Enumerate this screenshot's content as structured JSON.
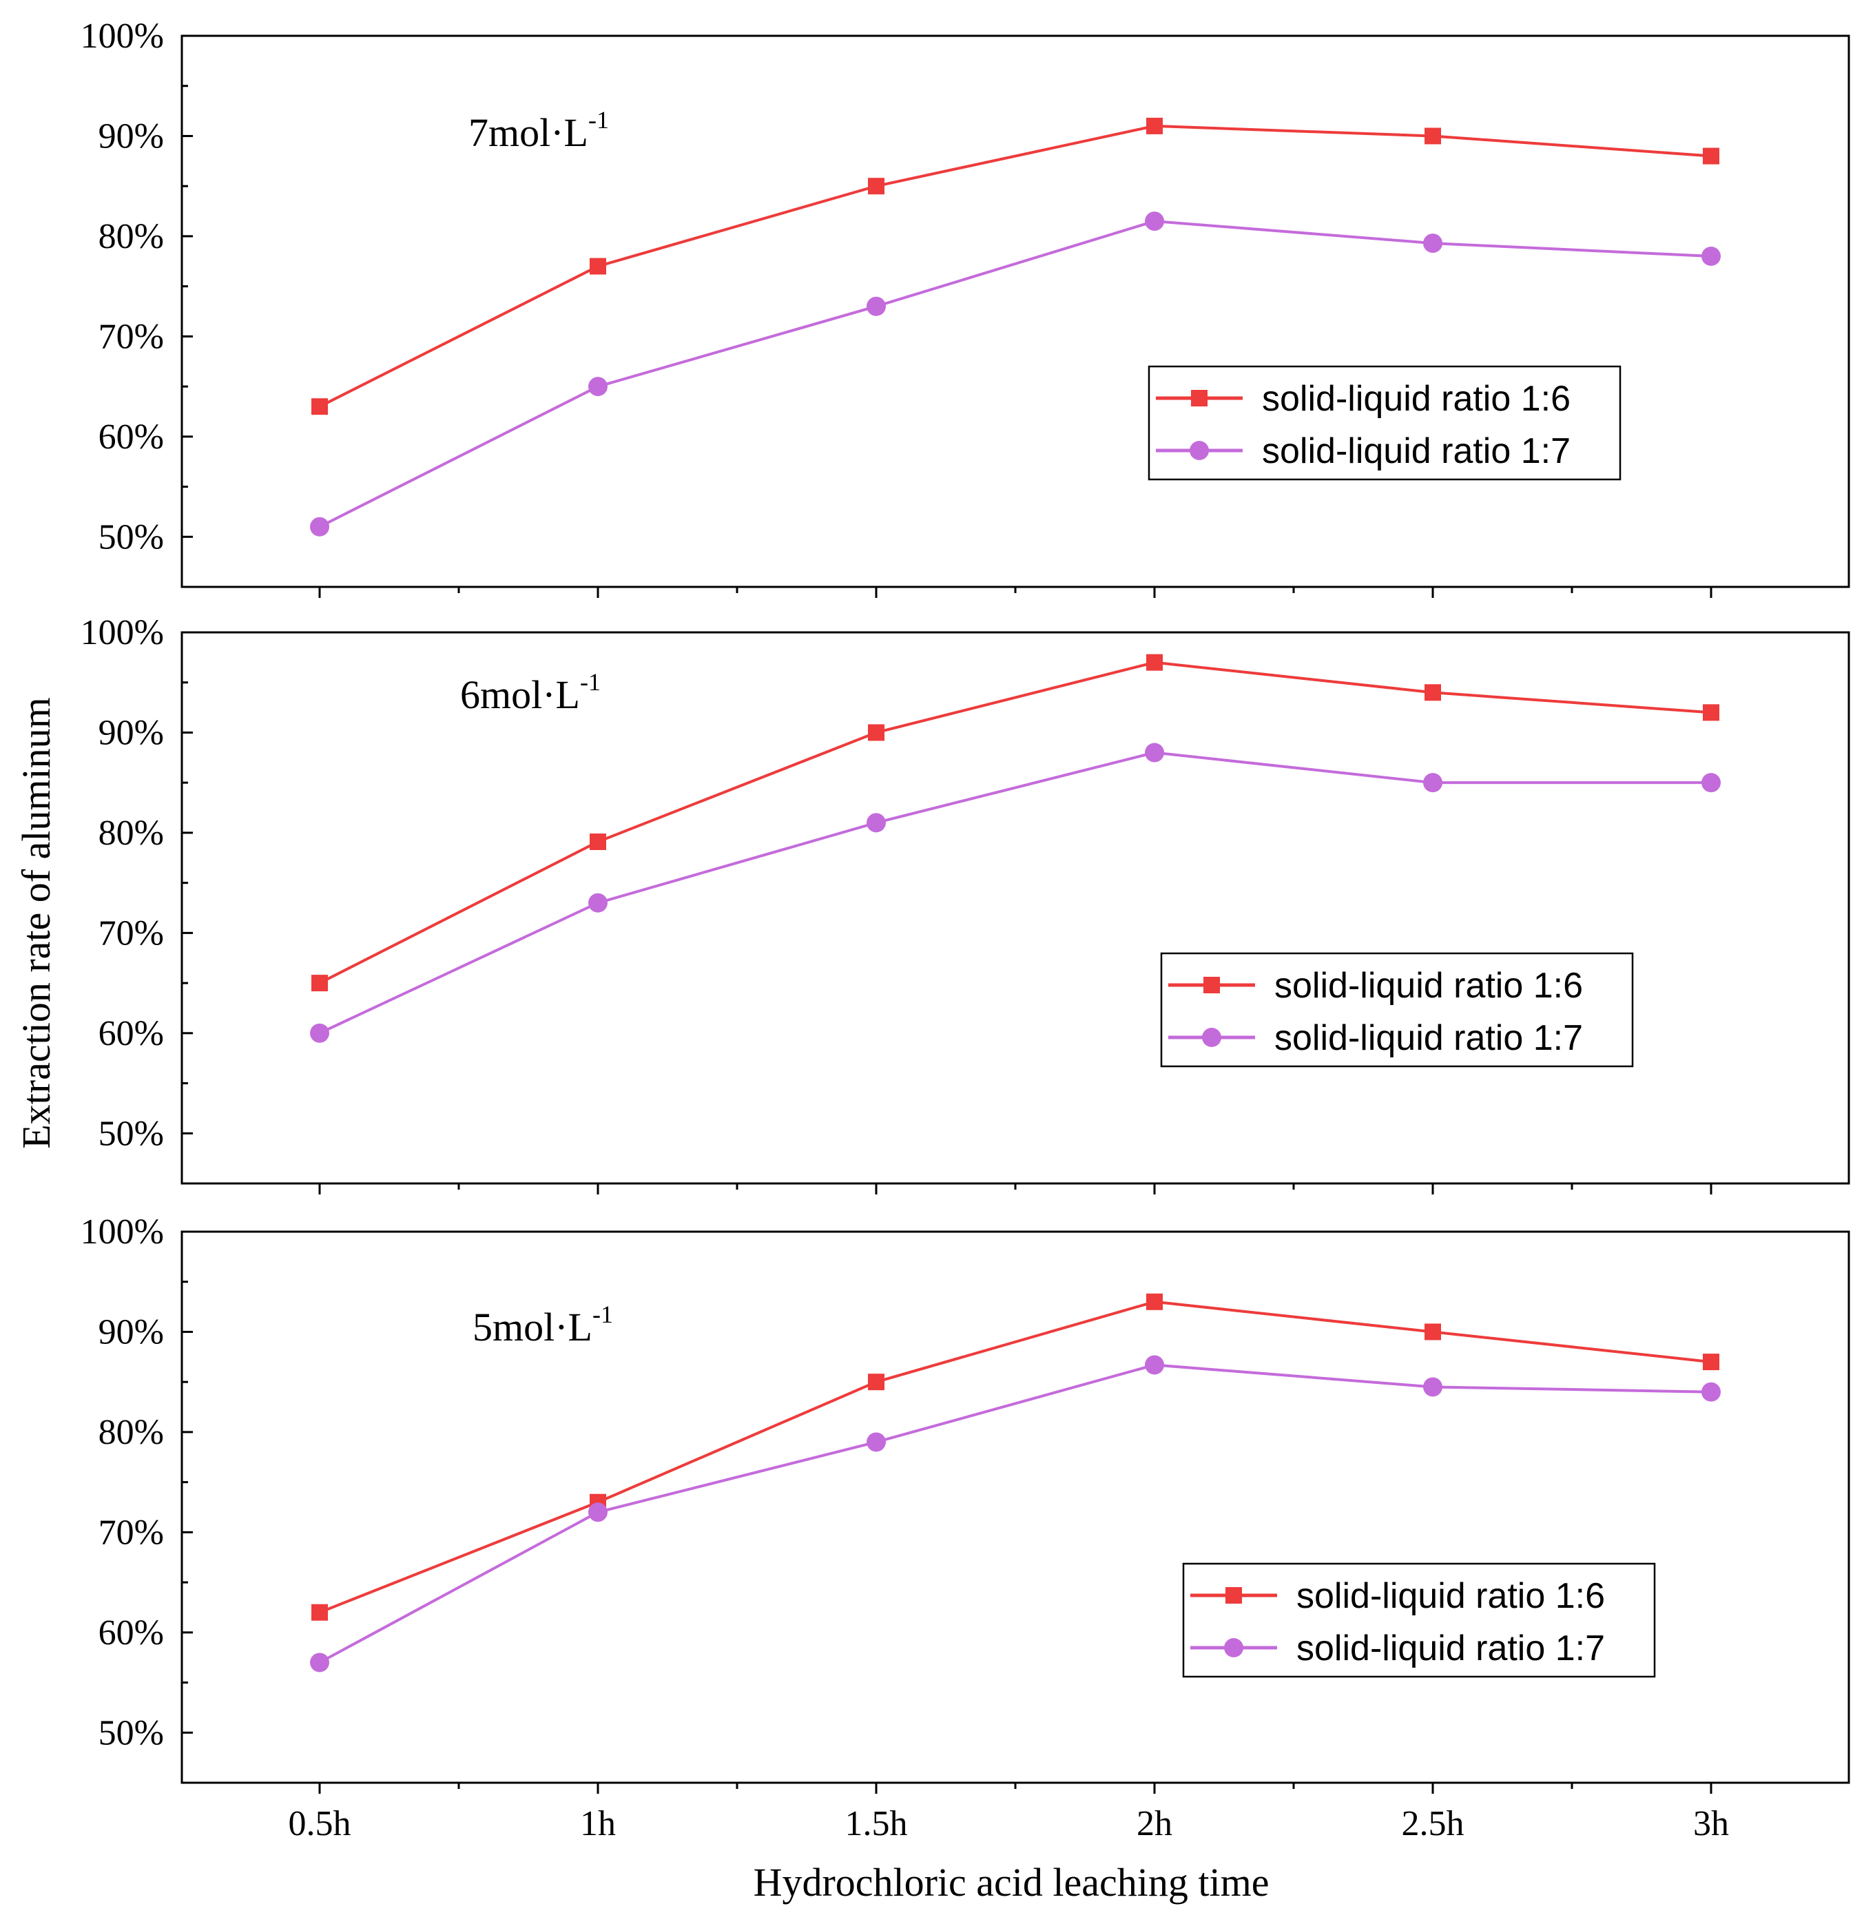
{
  "chart_data": {
    "type": "line",
    "xlabel": "Hydrochloric acid leaching time",
    "ylabel": "Extraction rate of aluminum",
    "categories": [
      "0.5h",
      "1h",
      "1.5h",
      "2h",
      "2.5h",
      "3h"
    ],
    "yticks": [
      "50%",
      "60%",
      "70%",
      "80%",
      "90%",
      "100%"
    ],
    "ylim": [
      45,
      100
    ],
    "legend_position": "right",
    "series_styles": [
      {
        "name": "solid-liquid ratio 1:6",
        "color": "#ee3b3b",
        "marker": "square"
      },
      {
        "name": "solid-liquid ratio 1:7",
        "color": "#c46bdb",
        "marker": "circle"
      }
    ],
    "panels": [
      {
        "label_main": "7mol·L",
        "label_sup": "-1",
        "series": [
          {
            "name": "solid-liquid ratio 1:6",
            "values": [
              63,
              77,
              85,
              91,
              90,
              88
            ]
          },
          {
            "name": "solid-liquid ratio 1:7",
            "values": [
              51,
              65,
              73,
              81.5,
              79.3,
              78
            ]
          }
        ]
      },
      {
        "label_main": "6mol·L",
        "label_sup": "-1",
        "series": [
          {
            "name": "solid-liquid ratio 1:6",
            "values": [
              65,
              79.1,
              90,
              97,
              94,
              92
            ]
          },
          {
            "name": "solid-liquid ratio 1:7",
            "values": [
              60,
              73,
              81,
              88,
              85,
              85
            ]
          }
        ]
      },
      {
        "label_main": "5mol·L",
        "label_sup": "-1",
        "series": [
          {
            "name": "solid-liquid ratio 1:6",
            "values": [
              62,
              73,
              85,
              93,
              90,
              87
            ]
          },
          {
            "name": "solid-liquid ratio 1:7",
            "values": [
              57,
              72,
              79,
              86.7,
              84.5,
              84
            ]
          }
        ]
      }
    ]
  }
}
